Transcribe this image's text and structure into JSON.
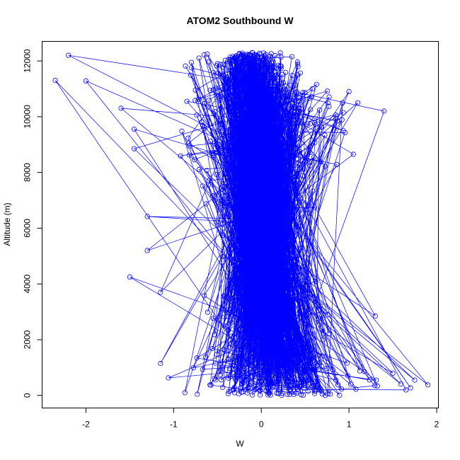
{
  "chart_data": {
    "type": "scatter",
    "title": "ATOM2 Southbound W",
    "xlabel": "W",
    "ylabel": "Altitude (m)",
    "xlim": [
      -2.5,
      2.02
    ],
    "ylim": [
      -450,
      12700
    ],
    "xticks": [
      -2,
      -1,
      0,
      1,
      2
    ],
    "yticks": [
      0,
      2000,
      4000,
      6000,
      8000,
      10000,
      12000
    ],
    "grid": false,
    "legend": "none",
    "series_color": "#0000ff",
    "marker": "open-circle",
    "connected": true,
    "altitude_range": [
      0,
      12300
    ],
    "envelope": [
      {
        "altitude": 0,
        "w_center": 0.2,
        "w_spread": 0.7
      },
      {
        "altitude": 500,
        "w_center": 0.25,
        "w_spread": 0.65
      },
      {
        "altitude": 1000,
        "w_center": 0.15,
        "w_spread": 0.45
      },
      {
        "altitude": 2000,
        "w_center": 0.1,
        "w_spread": 0.35
      },
      {
        "altitude": 3000,
        "w_center": 0.05,
        "w_spread": 0.35
      },
      {
        "altitude": 4000,
        "w_center": 0.0,
        "w_spread": 0.3
      },
      {
        "altitude": 5000,
        "w_center": 0.0,
        "w_spread": 0.25
      },
      {
        "altitude": 6000,
        "w_center": 0.0,
        "w_spread": 0.25
      },
      {
        "altitude": 7000,
        "w_center": 0.0,
        "w_spread": 0.3
      },
      {
        "altitude": 8000,
        "w_center": 0.0,
        "w_spread": 0.38
      },
      {
        "altitude": 9000,
        "w_center": 0.0,
        "w_spread": 0.45
      },
      {
        "altitude": 10000,
        "w_center": 0.05,
        "w_spread": 0.45
      },
      {
        "altitude": 11000,
        "w_center": -0.05,
        "w_spread": 0.4
      },
      {
        "altitude": 12000,
        "w_center": -0.15,
        "w_spread": 0.32
      },
      {
        "altitude": 12300,
        "w_center": -0.15,
        "w_spread": 0.25
      }
    ],
    "outliers": [
      {
        "w": -2.2,
        "altitude": 12200
      },
      {
        "w": -2.35,
        "altitude": 11300
      },
      {
        "w": -2.0,
        "altitude": 11280
      },
      {
        "w": -1.6,
        "altitude": 10300
      },
      {
        "w": 1.4,
        "altitude": 10200
      },
      {
        "w": 1.1,
        "altitude": 10500
      },
      {
        "w": 1.0,
        "altitude": 10900
      },
      {
        "w": -1.45,
        "altitude": 9550
      },
      {
        "w": -1.45,
        "altitude": 8850
      },
      {
        "w": 1.05,
        "altitude": 8650
      },
      {
        "w": -1.3,
        "altitude": 6420
      },
      {
        "w": -1.3,
        "altitude": 5200
      },
      {
        "w": -1.5,
        "altitude": 4250
      },
      {
        "w": -1.15,
        "altitude": 3700
      },
      {
        "w": 1.3,
        "altitude": 2850
      },
      {
        "w": -1.15,
        "altitude": 1150
      },
      {
        "w": 1.9,
        "altitude": 380
      },
      {
        "w": 1.75,
        "altitude": 550
      },
      {
        "w": 1.65,
        "altitude": 200
      },
      {
        "w": 1.5,
        "altitude": 800
      }
    ]
  }
}
